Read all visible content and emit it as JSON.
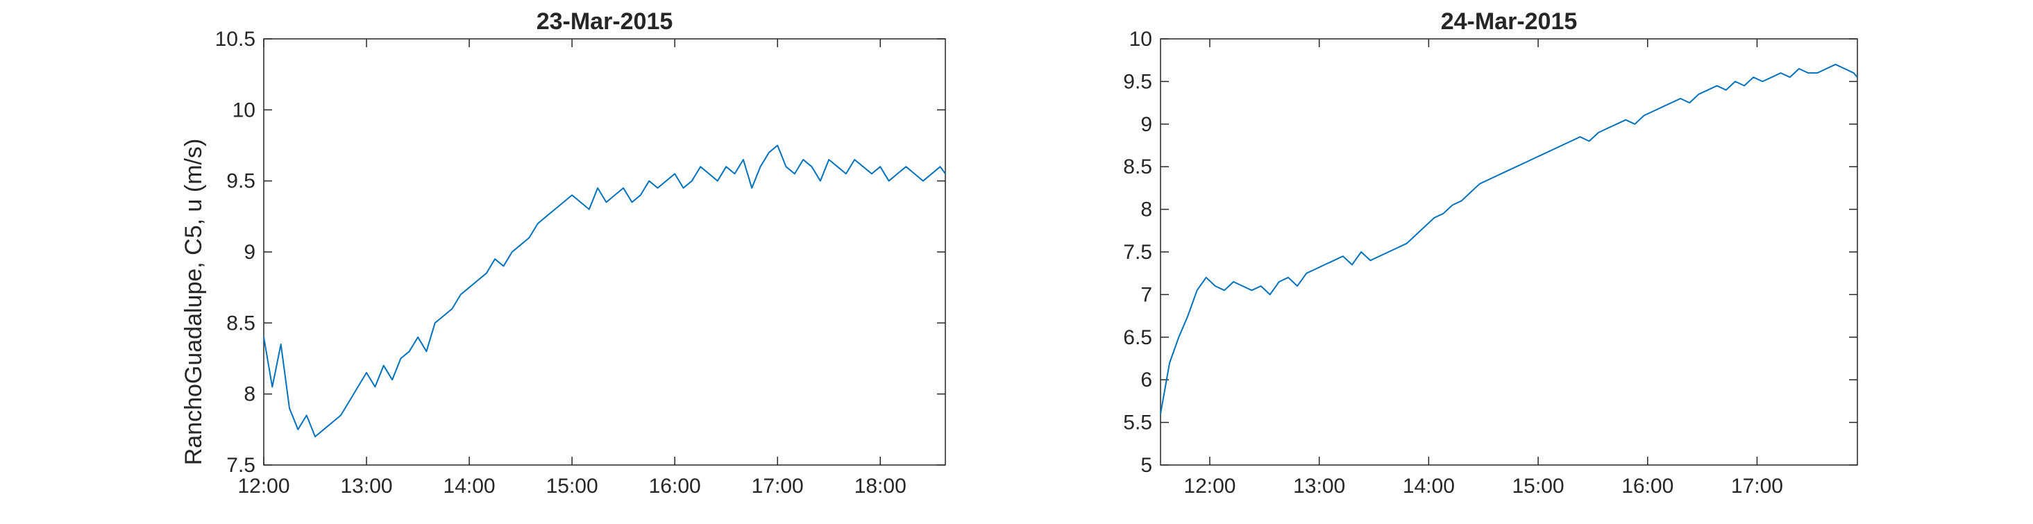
{
  "chart_data": [
    {
      "type": "line",
      "title": "23-Mar-2015",
      "ylabel": "RanchoGuadalupe, C5, u (m/s)",
      "xlabel": "",
      "x_ticks": [
        "12:00",
        "13:00",
        "14:00",
        "15:00",
        "16:00",
        "17:00",
        "18:00"
      ],
      "y_ticks": [
        "7.5",
        "8",
        "8.5",
        "9",
        "9.5",
        "10",
        "10.5"
      ],
      "xlim": [
        "12:00",
        "18:38"
      ],
      "ylim": [
        7.5,
        10.5
      ],
      "grid": false,
      "series_color": "#0072BD",
      "x": [
        "12:00",
        "12:05",
        "12:10",
        "12:15",
        "12:20",
        "12:25",
        "12:30",
        "12:35",
        "12:40",
        "12:45",
        "12:50",
        "12:55",
        "13:00",
        "13:05",
        "13:10",
        "13:15",
        "13:20",
        "13:25",
        "13:30",
        "13:35",
        "13:40",
        "13:45",
        "13:50",
        "13:55",
        "14:00",
        "14:05",
        "14:10",
        "14:15",
        "14:20",
        "14:25",
        "14:30",
        "14:35",
        "14:40",
        "14:45",
        "14:50",
        "14:55",
        "15:00",
        "15:05",
        "15:10",
        "15:15",
        "15:20",
        "15:25",
        "15:30",
        "15:35",
        "15:40",
        "15:45",
        "15:50",
        "15:55",
        "16:00",
        "16:05",
        "16:10",
        "16:15",
        "16:20",
        "16:25",
        "16:30",
        "16:35",
        "16:40",
        "16:45",
        "16:50",
        "16:55",
        "17:00",
        "17:05",
        "17:10",
        "17:15",
        "17:20",
        "17:25",
        "17:30",
        "17:35",
        "17:40",
        "17:45",
        "17:50",
        "17:55",
        "18:00",
        "18:05",
        "18:10",
        "18:15",
        "18:20",
        "18:25",
        "18:30",
        "18:35",
        "18:38"
      ],
      "y": [
        8.4,
        8.05,
        8.35,
        7.9,
        7.75,
        7.85,
        7.7,
        7.75,
        7.8,
        7.85,
        7.95,
        8.05,
        8.15,
        8.05,
        8.2,
        8.1,
        8.25,
        8.3,
        8.4,
        8.3,
        8.5,
        8.55,
        8.6,
        8.7,
        8.75,
        8.8,
        8.85,
        8.95,
        8.9,
        9.0,
        9.05,
        9.1,
        9.2,
        9.25,
        9.3,
        9.35,
        9.4,
        9.35,
        9.3,
        9.45,
        9.35,
        9.4,
        9.45,
        9.35,
        9.4,
        9.5,
        9.45,
        9.5,
        9.55,
        9.45,
        9.5,
        9.6,
        9.55,
        9.5,
        9.6,
        9.55,
        9.65,
        9.45,
        9.6,
        9.7,
        9.75,
        9.6,
        9.55,
        9.65,
        9.6,
        9.5,
        9.65,
        9.6,
        9.55,
        9.65,
        9.6,
        9.55,
        9.6,
        9.5,
        9.55,
        9.6,
        9.55,
        9.5,
        9.55,
        9.6,
        9.55
      ]
    },
    {
      "type": "line",
      "title": "24-Mar-2015",
      "ylabel": "",
      "xlabel": "",
      "x_ticks": [
        "12:00",
        "13:00",
        "14:00",
        "15:00",
        "16:00",
        "17:00"
      ],
      "y_ticks": [
        "5",
        "5.5",
        "6",
        "6.5",
        "7",
        "7.5",
        "8",
        "8.5",
        "9",
        "9.5",
        "10"
      ],
      "xlim": [
        "11:33",
        "17:55"
      ],
      "ylim": [
        5,
        10
      ],
      "grid": false,
      "series_color": "#0072BD",
      "x": [
        "11:33",
        "11:38",
        "11:43",
        "11:48",
        "11:53",
        "11:58",
        "12:03",
        "12:08",
        "12:13",
        "12:18",
        "12:23",
        "12:28",
        "12:33",
        "12:38",
        "12:43",
        "12:48",
        "12:53",
        "12:58",
        "13:03",
        "13:08",
        "13:13",
        "13:18",
        "13:23",
        "13:28",
        "13:33",
        "13:38",
        "13:43",
        "13:48",
        "13:53",
        "13:58",
        "14:03",
        "14:08",
        "14:13",
        "14:18",
        "14:23",
        "14:28",
        "14:33",
        "14:38",
        "14:43",
        "14:48",
        "14:53",
        "14:58",
        "15:03",
        "15:08",
        "15:13",
        "15:18",
        "15:23",
        "15:28",
        "15:33",
        "15:38",
        "15:43",
        "15:48",
        "15:53",
        "15:58",
        "16:03",
        "16:08",
        "16:13",
        "16:18",
        "16:23",
        "16:28",
        "16:33",
        "16:38",
        "16:43",
        "16:48",
        "16:53",
        "16:58",
        "17:03",
        "17:08",
        "17:13",
        "17:18",
        "17:23",
        "17:28",
        "17:33",
        "17:38",
        "17:43",
        "17:48",
        "17:53",
        "17:55"
      ],
      "y": [
        5.6,
        6.2,
        6.5,
        6.75,
        7.05,
        7.2,
        7.1,
        7.05,
        7.15,
        7.1,
        7.05,
        7.1,
        7.0,
        7.15,
        7.2,
        7.1,
        7.25,
        7.3,
        7.35,
        7.4,
        7.45,
        7.35,
        7.5,
        7.4,
        7.45,
        7.5,
        7.55,
        7.6,
        7.7,
        7.8,
        7.9,
        7.95,
        8.05,
        8.1,
        8.2,
        8.3,
        8.35,
        8.4,
        8.45,
        8.5,
        8.55,
        8.6,
        8.65,
        8.7,
        8.75,
        8.8,
        8.85,
        8.8,
        8.9,
        8.95,
        9.0,
        9.05,
        9.0,
        9.1,
        9.15,
        9.2,
        9.25,
        9.3,
        9.25,
        9.35,
        9.4,
        9.45,
        9.4,
        9.5,
        9.45,
        9.55,
        9.5,
        9.55,
        9.6,
        9.55,
        9.65,
        9.6,
        9.6,
        9.65,
        9.7,
        9.65,
        9.6,
        9.55
      ]
    }
  ]
}
